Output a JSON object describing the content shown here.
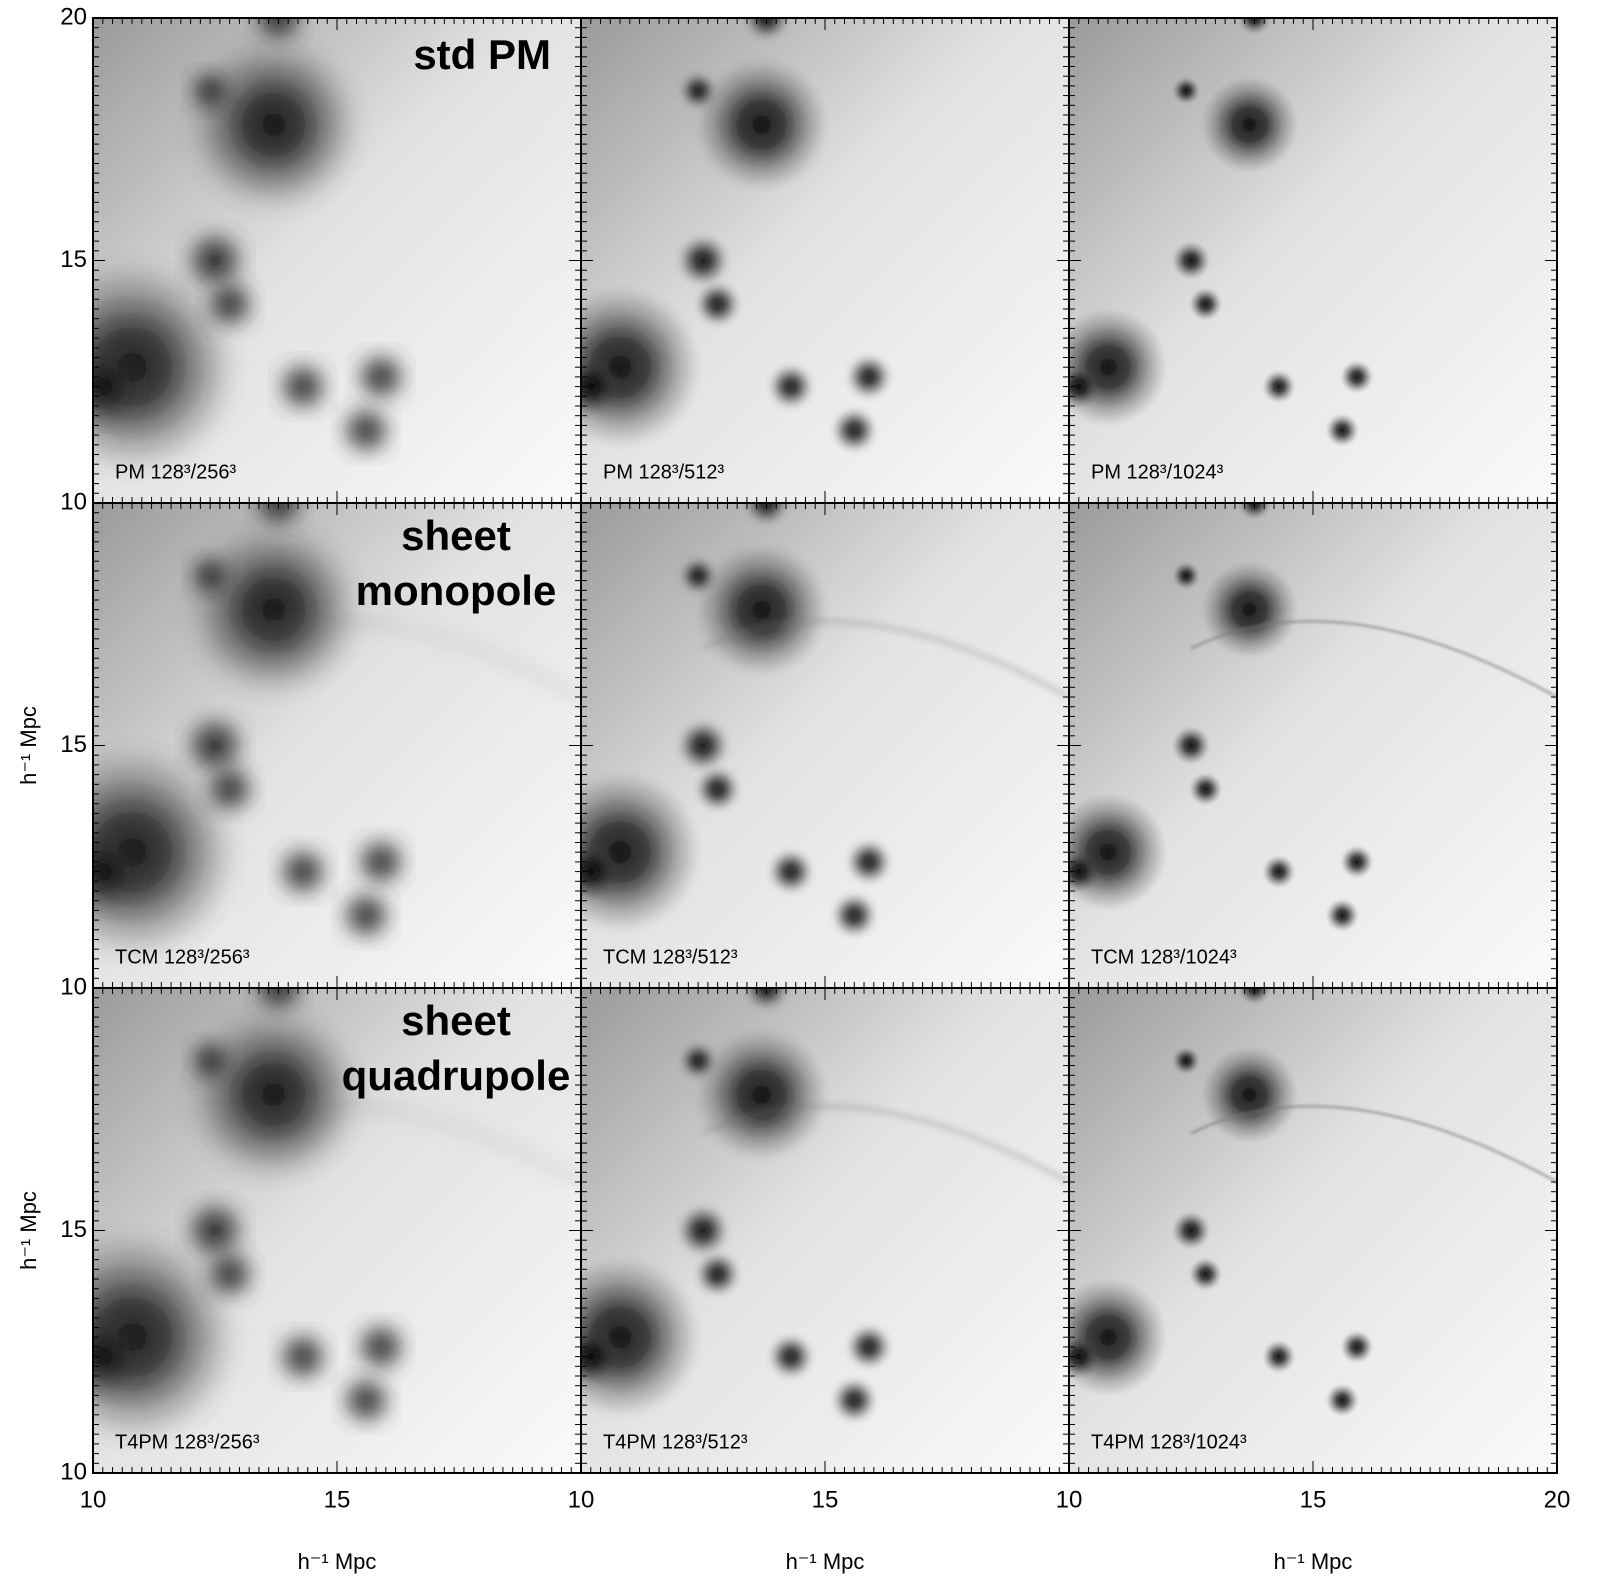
{
  "chart_data": {
    "type": "image",
    "xlabel": "h⁻¹ Mpc",
    "ylabel": "h⁻¹ Mpc",
    "xlim": [
      10,
      20
    ],
    "ylim": [
      10,
      20
    ],
    "xticks": [
      10,
      15,
      20
    ],
    "yticks": [
      10,
      15,
      20
    ],
    "row_titles": [
      [
        "std PM"
      ],
      [
        "sheet",
        "monopole"
      ],
      [
        "sheet",
        "quadrupole"
      ]
    ],
    "panels": [
      [
        "PM 128³/256³",
        "PM 128³/512³",
        "PM 128³/1024³"
      ],
      [
        "TCM 128³/256³",
        "TCM 128³/512³",
        "TCM 128³/1024³"
      ],
      [
        "T4PM 128³/256³",
        "T4PM 128³/512³",
        "T4PM 128³/1024³"
      ]
    ]
  }
}
